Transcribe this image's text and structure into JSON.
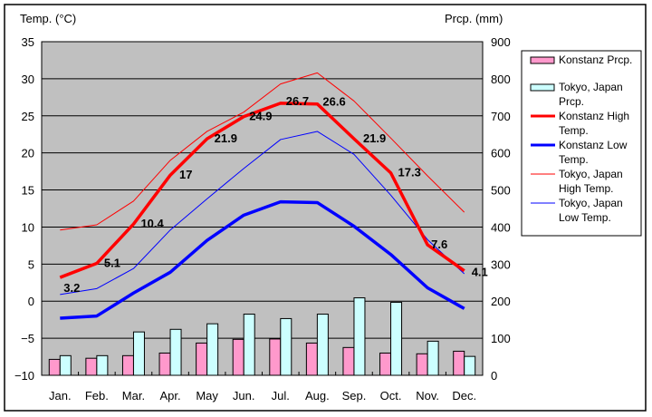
{
  "chart_data": {
    "type": "bar+line",
    "title": "",
    "categories": [
      "Jan.",
      "Feb.",
      "Mar.",
      "Apr.",
      "May",
      "Jun.",
      "Jul.",
      "Aug.",
      "Sep.",
      "Oct.",
      "Nov.",
      "Dec."
    ],
    "y_left": {
      "label": "Temp. (°C)",
      "range": [
        -10,
        35
      ],
      "ticks": [
        35,
        30,
        25,
        20,
        15,
        10,
        5,
        0,
        -5,
        -10
      ],
      "grid": true
    },
    "y_right": {
      "label": "Prcp. (mm)",
      "range": [
        0,
        900
      ],
      "ticks": [
        900,
        800,
        700,
        600,
        500,
        400,
        300,
        200,
        100,
        0
      ]
    },
    "series": [
      {
        "name": "Konstanz Prcp.",
        "legend": [
          "Konstanz Prcp."
        ],
        "type": "bar",
        "axis": "right",
        "color": "#ff99cc",
        "values": [
          43,
          46,
          53,
          60,
          87,
          97,
          98,
          87,
          75,
          60,
          58,
          65
        ]
      },
      {
        "name": "Tokyo, Japan Prcp.",
        "legend": [
          "Tokyo, Japan",
          "Prcp."
        ],
        "type": "bar",
        "axis": "right",
        "color": "#ccffff",
        "values": [
          53,
          53,
          117,
          124,
          139,
          165,
          153,
          165,
          209,
          197,
          92,
          51
        ]
      },
      {
        "name": "Konstanz High Temp.",
        "legend": [
          "Konstanz High",
          "Temp."
        ],
        "type": "line",
        "axis": "left",
        "color": "#ff0000",
        "weight": "thick",
        "values": [
          3.2,
          5.1,
          10.4,
          17,
          21.9,
          24.9,
          26.7,
          26.6,
          21.9,
          17.3,
          7.6,
          4.1
        ],
        "labels": [
          "3.2",
          "5.1",
          "10.4",
          "17",
          "21.9",
          "24.9",
          "26.7",
          "26.6",
          "21.9",
          "17.3",
          "7.6",
          "4.1"
        ]
      },
      {
        "name": "Konstanz Low Temp.",
        "legend": [
          "Konstanz Low",
          "Temp."
        ],
        "type": "line",
        "axis": "left",
        "color": "#0000ff",
        "weight": "thick",
        "values": [
          -2.3,
          -2.0,
          1.1,
          3.9,
          8.2,
          11.6,
          13.4,
          13.3,
          10.1,
          6.3,
          1.8,
          -1.0
        ]
      },
      {
        "name": "Tokyo, Japan High Temp.",
        "legend": [
          "Tokyo, Japan",
          "High Temp."
        ],
        "type": "line",
        "axis": "left",
        "color": "#ff0000",
        "weight": "thin",
        "values": [
          9.6,
          10.3,
          13.5,
          19.0,
          22.9,
          25.5,
          29.3,
          30.8,
          27.0,
          22.0,
          16.9,
          12.0
        ]
      },
      {
        "name": "Tokyo, Japan Low Temp.",
        "legend": [
          "Tokyo, Japan",
          "Low Temp."
        ],
        "type": "line",
        "axis": "left",
        "color": "#0000ff",
        "weight": "thin",
        "values": [
          0.9,
          1.7,
          4.4,
          9.6,
          13.8,
          17.9,
          21.8,
          22.9,
          19.8,
          14.3,
          8.3,
          3.7
        ]
      }
    ],
    "legend_placement": "right",
    "plot_background": "#c0c0c0"
  }
}
